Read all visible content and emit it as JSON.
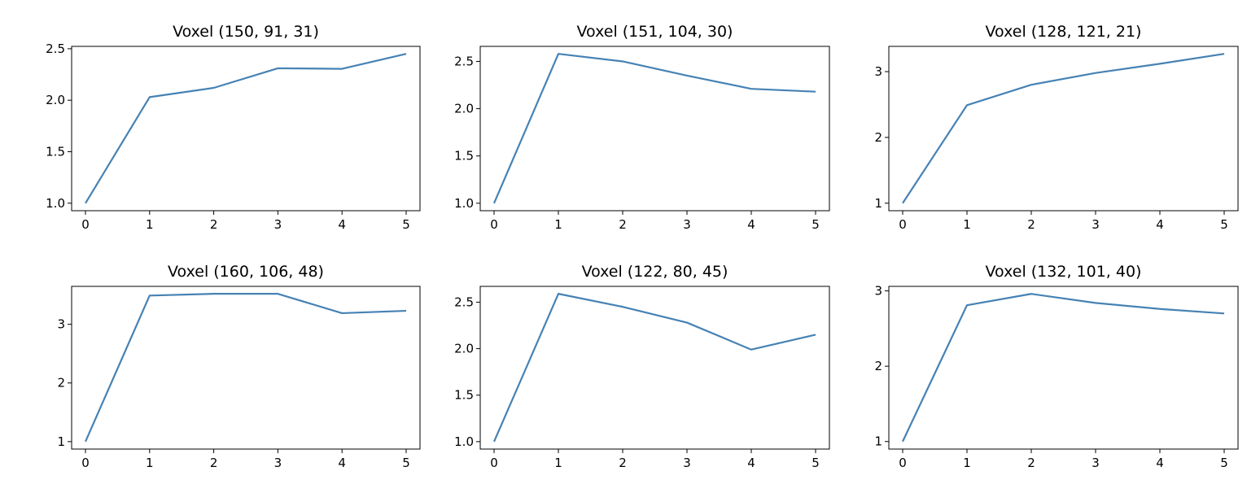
{
  "figure": {
    "background": "#ffffff",
    "line_color": "#4682b4"
  },
  "chart_data": [
    {
      "type": "line",
      "title": "Voxel (150, 91, 31)",
      "x": [
        0,
        1,
        2,
        3,
        4,
        5
      ],
      "y": [
        1.0,
        2.03,
        2.12,
        2.31,
        2.305,
        2.45
      ],
      "xticks": [
        0,
        1,
        2,
        3,
        4,
        5
      ],
      "yticks": [
        1.0,
        1.5,
        2.0,
        2.5
      ],
      "ytick_labels": [
        "1.0",
        "1.5",
        "2.0",
        "2.5"
      ],
      "ylim": [
        0.927,
        2.523
      ],
      "grid": false
    },
    {
      "type": "line",
      "title": "Voxel (151, 104, 30)",
      "x": [
        0,
        1,
        2,
        3,
        4,
        5
      ],
      "y": [
        1.0,
        2.58,
        2.5,
        2.35,
        2.21,
        2.18
      ],
      "xticks": [
        0,
        1,
        2,
        3,
        4,
        5
      ],
      "yticks": [
        1.0,
        1.5,
        2.0,
        2.5
      ],
      "ytick_labels": [
        "1.0",
        "1.5",
        "2.0",
        "2.5"
      ],
      "ylim": [
        0.921,
        2.659
      ],
      "grid": false
    },
    {
      "type": "line",
      "title": "Voxel (128, 121, 21)",
      "x": [
        0,
        1,
        2,
        3,
        4,
        5
      ],
      "y": [
        1.0,
        2.49,
        2.8,
        2.98,
        3.12,
        3.27
      ],
      "xticks": [
        0,
        1,
        2,
        3,
        4,
        5
      ],
      "yticks": [
        1,
        2,
        3
      ],
      "ytick_labels": [
        "1",
        "2",
        "3"
      ],
      "ylim": [
        0.886,
        3.384
      ],
      "grid": false
    },
    {
      "type": "line",
      "title": "Voxel (160, 106, 48)",
      "x": [
        0,
        1,
        2,
        3,
        4,
        5
      ],
      "y": [
        1.0,
        3.49,
        3.52,
        3.52,
        3.19,
        3.23
      ],
      "xticks": [
        0,
        1,
        2,
        3,
        4,
        5
      ],
      "yticks": [
        1,
        2,
        3
      ],
      "ytick_labels": [
        "1",
        "2",
        "3"
      ],
      "ylim": [
        0.873,
        3.647
      ],
      "grid": false
    },
    {
      "type": "line",
      "title": "Voxel (122, 80, 45)",
      "x": [
        0,
        1,
        2,
        3,
        4,
        5
      ],
      "y": [
        1.0,
        2.59,
        2.45,
        2.28,
        1.99,
        2.15
      ],
      "xticks": [
        0,
        1,
        2,
        3,
        4,
        5
      ],
      "yticks": [
        1.0,
        1.5,
        2.0,
        2.5
      ],
      "ytick_labels": [
        "1.0",
        "1.5",
        "2.0",
        "2.5"
      ],
      "ylim": [
        0.92,
        2.67
      ],
      "grid": false
    },
    {
      "type": "line",
      "title": "Voxel (132, 101, 40)",
      "x": [
        0,
        1,
        2,
        3,
        4,
        5
      ],
      "y": [
        1.0,
        2.81,
        2.96,
        2.84,
        2.76,
        2.7
      ],
      "xticks": [
        0,
        1,
        2,
        3,
        4,
        5
      ],
      "yticks": [
        1,
        2,
        3
      ],
      "ytick_labels": [
        "1",
        "2",
        "3"
      ],
      "ylim": [
        0.9,
        3.06
      ],
      "grid": false
    }
  ]
}
